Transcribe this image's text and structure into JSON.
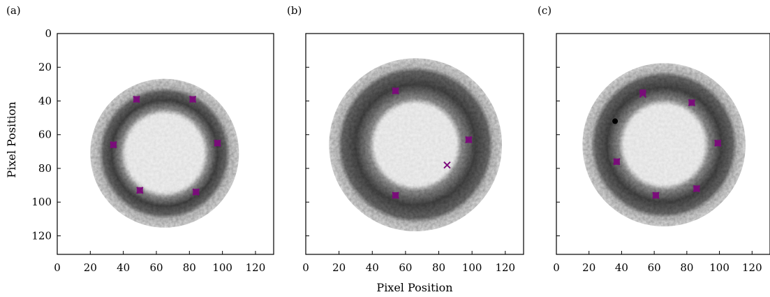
{
  "chart_data": [
    {
      "type": "image_scatter",
      "panel_label": "(a)",
      "xlabel": "",
      "ylabel": "Pixel Position",
      "xlim": [
        0,
        131
      ],
      "ylim": [
        131,
        0
      ],
      "xticks": [
        0,
        20,
        40,
        60,
        80,
        100,
        120
      ],
      "yticks": [
        0,
        20,
        40,
        60,
        80,
        100,
        120
      ],
      "show_yticklabels": true,
      "image": {
        "kind": "ring",
        "center": [
          65,
          71
        ],
        "outer_radius": 45,
        "dark_outer_radius": 38,
        "inner_radius": 26
      },
      "markers_x": [
        [
          48,
          39
        ],
        [
          82,
          39
        ],
        [
          97,
          65
        ],
        [
          84,
          94
        ],
        [
          50,
          93
        ],
        [
          34,
          66
        ]
      ],
      "markers_square": [
        [
          48,
          39
        ],
        [
          82,
          39
        ],
        [
          97,
          65
        ],
        [
          84,
          94
        ],
        [
          50,
          93
        ],
        [
          34,
          66
        ]
      ],
      "markers_dot": []
    },
    {
      "type": "image_scatter",
      "panel_label": "(b)",
      "xlabel": "Pixel Position",
      "ylabel": "",
      "xlim": [
        0,
        131
      ],
      "ylim": [
        131,
        0
      ],
      "xticks": [
        0,
        20,
        40,
        60,
        80,
        100,
        120
      ],
      "yticks": [
        0,
        20,
        40,
        60,
        80,
        100,
        120
      ],
      "show_yticklabels": false,
      "image": {
        "kind": "ring",
        "center": [
          66,
          66
        ],
        "outer_radius": 52,
        "dark_outer_radius": 45,
        "inner_radius": 27
      },
      "markers_x": [
        [
          54,
          34
        ],
        [
          98,
          63
        ],
        [
          85,
          78
        ],
        [
          54,
          96
        ]
      ],
      "markers_square": [
        [
          54,
          34
        ],
        [
          98,
          63
        ],
        [
          54,
          96
        ]
      ],
      "markers_dot": []
    },
    {
      "type": "image_scatter",
      "panel_label": "(c)",
      "xlabel": "",
      "ylabel": "",
      "xlim": [
        0,
        131
      ],
      "ylim": [
        131,
        0
      ],
      "xticks": [
        0,
        20,
        40,
        60,
        80,
        100,
        120
      ],
      "yticks": [
        0,
        20,
        40,
        60,
        80,
        100,
        120
      ],
      "show_yticklabels": false,
      "image": {
        "kind": "ring",
        "center": [
          66,
          66
        ],
        "outer_radius": 50,
        "dark_outer_radius": 43,
        "inner_radius": 27
      },
      "markers_x": [
        [
          53,
          36
        ],
        [
          83,
          41
        ],
        [
          99,
          65
        ],
        [
          86,
          92
        ],
        [
          61,
          96
        ],
        [
          37,
          76
        ]
      ],
      "markers_square": [
        [
          53,
          35
        ],
        [
          83,
          41
        ],
        [
          99,
          65
        ],
        [
          86,
          92
        ],
        [
          61,
          96
        ],
        [
          37,
          76
        ]
      ],
      "markers_dot": [
        [
          36,
          52
        ]
      ]
    }
  ],
  "colors": {
    "marker": "#7b0a7b",
    "dot": "#000000",
    "ring_dark": "#4a4a4a",
    "ring_light": "#dcdcdc",
    "center": "#f0f0f0"
  }
}
